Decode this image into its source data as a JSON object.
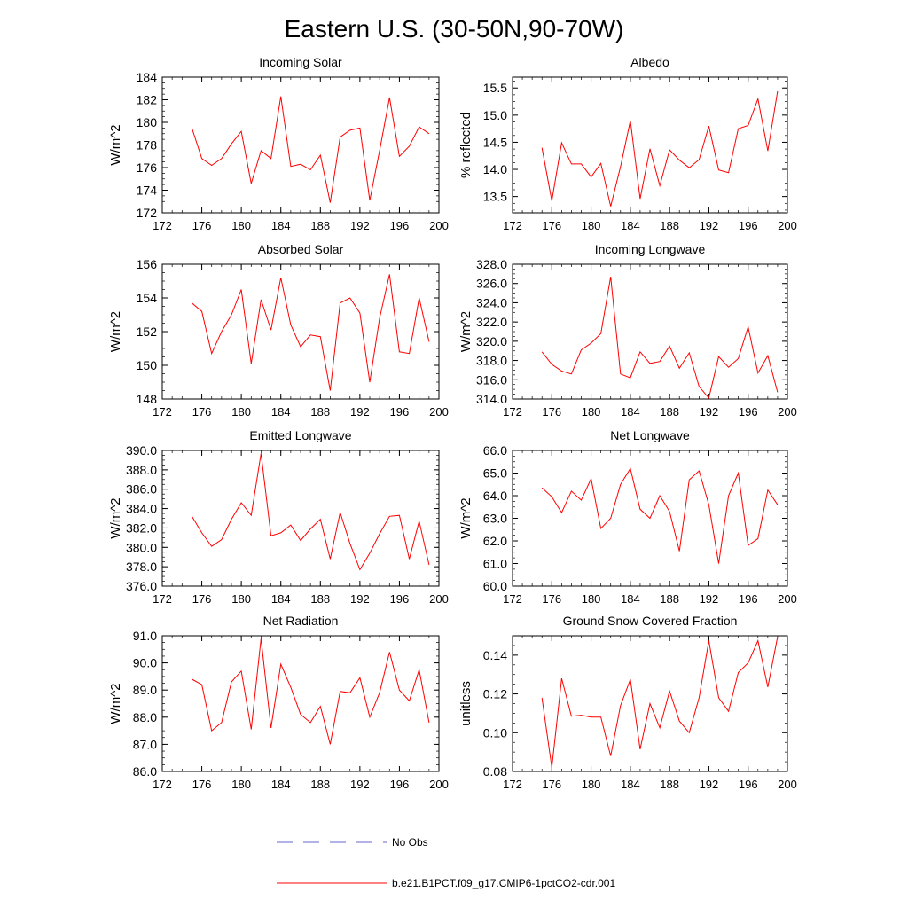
{
  "figure": {
    "title": "Eastern U.S. (30-50N,90-70W)",
    "legend": [
      {
        "label": "No Obs",
        "color": "#6666cc",
        "style": "dashed"
      },
      {
        "label": "b.e21.B1PCT.f09_g17.CMIP6-1pctCO2-cdr.001",
        "color": "#ff0000",
        "style": "solid"
      }
    ]
  },
  "chart_data": [
    {
      "type": "line",
      "title": "Incoming Solar",
      "ylabel": "W/m^2",
      "xlim": [
        172,
        200
      ],
      "xticks": [
        172,
        176,
        180,
        184,
        188,
        192,
        196,
        200
      ],
      "ylim": [
        172,
        184
      ],
      "yticks": [
        "172",
        "174",
        "176",
        "178",
        "180",
        "182",
        "184"
      ],
      "x": [
        175,
        176,
        177,
        178,
        179,
        180,
        181,
        182,
        183,
        184,
        185,
        186,
        187,
        188,
        189,
        190,
        191,
        192,
        193,
        194,
        195,
        196,
        197,
        198,
        199
      ],
      "series": [
        {
          "color": "#ff0000",
          "values": [
            179.5,
            176.8,
            176.2,
            176.8,
            178.1,
            179.2,
            174.6,
            177.5,
            176.8,
            182.3,
            176.1,
            176.3,
            175.8,
            177.1,
            172.9,
            178.7,
            179.3,
            179.5,
            173.1,
            177.5,
            182.2,
            177.0,
            177.9,
            179.6,
            179.0
          ]
        }
      ]
    },
    {
      "type": "line",
      "title": "Albedo",
      "ylabel": "% reflected",
      "xlim": [
        172,
        200
      ],
      "xticks": [
        172,
        176,
        180,
        184,
        188,
        192,
        196,
        200
      ],
      "ylim": [
        13.2,
        15.7
      ],
      "yticks": [
        "13.5",
        "14.0",
        "14.5",
        "15.0",
        "15.5"
      ],
      "x": [
        175,
        176,
        177,
        178,
        179,
        180,
        181,
        182,
        183,
        184,
        185,
        186,
        187,
        188,
        189,
        190,
        191,
        192,
        193,
        194,
        195,
        196,
        197,
        198,
        199
      ],
      "series": [
        {
          "color": "#ff0000",
          "values": [
            14.4,
            13.42,
            14.49,
            14.1,
            14.1,
            13.86,
            14.11,
            13.32,
            14.05,
            14.9,
            13.46,
            14.38,
            13.7,
            14.36,
            14.17,
            14.03,
            14.18,
            14.8,
            13.99,
            13.94,
            14.75,
            14.81,
            15.3,
            14.34,
            15.44
          ]
        }
      ]
    },
    {
      "type": "line",
      "title": "Absorbed Solar",
      "ylabel": "W/m^2",
      "xlim": [
        172,
        200
      ],
      "xticks": [
        172,
        176,
        180,
        184,
        188,
        192,
        196,
        200
      ],
      "ylim": [
        148,
        156
      ],
      "yticks": [
        "148",
        "150",
        "152",
        "154",
        "156"
      ],
      "x": [
        175,
        176,
        177,
        178,
        179,
        180,
        181,
        182,
        183,
        184,
        185,
        186,
        187,
        188,
        189,
        190,
        191,
        192,
        193,
        194,
        195,
        196,
        197,
        198,
        199
      ],
      "series": [
        {
          "color": "#ff0000",
          "values": [
            153.7,
            153.2,
            150.7,
            152.0,
            153.0,
            154.5,
            150.1,
            153.9,
            152.1,
            155.2,
            152.4,
            151.1,
            151.8,
            151.7,
            148.5,
            153.7,
            154.0,
            153.1,
            149.0,
            152.8,
            155.4,
            150.8,
            150.7,
            154.0,
            151.4
          ]
        }
      ]
    },
    {
      "type": "line",
      "title": "Incoming Longwave",
      "ylabel": "W/m^2",
      "xlim": [
        172,
        200
      ],
      "xticks": [
        172,
        176,
        180,
        184,
        188,
        192,
        196,
        200
      ],
      "ylim": [
        314,
        328
      ],
      "yticks": [
        "314.0",
        "316.0",
        "318.0",
        "320.0",
        "322.0",
        "324.0",
        "326.0",
        "328.0"
      ],
      "x": [
        175,
        176,
        177,
        178,
        179,
        180,
        181,
        182,
        183,
        184,
        185,
        186,
        187,
        188,
        189,
        190,
        191,
        192,
        193,
        194,
        195,
        196,
        197,
        198,
        199
      ],
      "series": [
        {
          "color": "#ff0000",
          "values": [
            318.9,
            317.6,
            316.9,
            316.6,
            319.1,
            319.8,
            320.8,
            326.7,
            316.6,
            316.2,
            318.9,
            317.7,
            317.9,
            319.5,
            317.2,
            318.8,
            315.3,
            314.1,
            318.4,
            317.3,
            318.2,
            321.5,
            316.7,
            318.5,
            314.7
          ]
        }
      ]
    },
    {
      "type": "line",
      "title": "Emitted Longwave",
      "ylabel": "W/m^2",
      "xlim": [
        172,
        200
      ],
      "xticks": [
        172,
        176,
        180,
        184,
        188,
        192,
        196,
        200
      ],
      "ylim": [
        376,
        390
      ],
      "yticks": [
        "376.0",
        "378.0",
        "380.0",
        "382.0",
        "384.0",
        "386.0",
        "388.0",
        "390.0"
      ],
      "x": [
        175,
        176,
        177,
        178,
        179,
        180,
        181,
        182,
        183,
        184,
        185,
        186,
        187,
        188,
        189,
        190,
        191,
        192,
        193,
        194,
        195,
        196,
        197,
        198,
        199
      ],
      "series": [
        {
          "color": "#ff0000",
          "values": [
            383.2,
            381.5,
            380.1,
            380.8,
            382.9,
            384.6,
            383.3,
            389.7,
            381.2,
            381.5,
            382.3,
            380.7,
            381.9,
            382.9,
            378.8,
            383.6,
            380.4,
            377.7,
            379.4,
            381.4,
            383.2,
            383.3,
            378.8,
            382.7,
            378.2
          ]
        }
      ]
    },
    {
      "type": "line",
      "title": "Net Longwave",
      "ylabel": "W/m^2",
      "xlim": [
        172,
        200
      ],
      "xticks": [
        172,
        176,
        180,
        184,
        188,
        192,
        196,
        200
      ],
      "ylim": [
        60,
        66
      ],
      "yticks": [
        "60.0",
        "61.0",
        "62.0",
        "63.0",
        "64.0",
        "65.0",
        "66.0"
      ],
      "x": [
        175,
        176,
        177,
        178,
        179,
        180,
        181,
        182,
        183,
        184,
        185,
        186,
        187,
        188,
        189,
        190,
        191,
        192,
        193,
        194,
        195,
        196,
        197,
        198,
        199
      ],
      "series": [
        {
          "color": "#ff0000",
          "values": [
            64.35,
            63.95,
            63.25,
            64.2,
            63.8,
            64.75,
            62.55,
            63.0,
            64.5,
            65.2,
            63.4,
            63.0,
            64.0,
            63.3,
            61.55,
            64.7,
            65.1,
            63.6,
            61.0,
            64.0,
            65.0,
            61.8,
            62.1,
            64.25,
            63.6
          ]
        }
      ]
    },
    {
      "type": "line",
      "title": "Net Radiation",
      "ylabel": "W/m^2",
      "xlim": [
        172,
        200
      ],
      "xticks": [
        172,
        176,
        180,
        184,
        188,
        192,
        196,
        200
      ],
      "ylim": [
        86,
        91
      ],
      "yticks": [
        "86.0",
        "87.0",
        "88.0",
        "89.0",
        "90.0",
        "91.0"
      ],
      "x": [
        175,
        176,
        177,
        178,
        179,
        180,
        181,
        182,
        183,
        184,
        185,
        186,
        187,
        188,
        189,
        190,
        191,
        192,
        193,
        194,
        195,
        196,
        197,
        198,
        199
      ],
      "series": [
        {
          "color": "#ff0000",
          "values": [
            89.4,
            89.2,
            87.5,
            87.8,
            89.3,
            89.7,
            87.55,
            90.9,
            87.6,
            89.95,
            89.1,
            88.1,
            87.8,
            88.4,
            87.0,
            88.95,
            88.9,
            89.45,
            88.0,
            88.9,
            90.4,
            89.0,
            88.6,
            89.75,
            87.8
          ]
        }
      ]
    },
    {
      "type": "line",
      "title": "Ground Snow Covered Fraction",
      "ylabel": "unitless",
      "xlim": [
        172,
        200
      ],
      "xticks": [
        172,
        176,
        180,
        184,
        188,
        192,
        196,
        200
      ],
      "ylim": [
        0.08,
        0.15
      ],
      "yticks": [
        "0.08",
        "0.10",
        "0.12",
        "0.14"
      ],
      "x": [
        175,
        176,
        177,
        178,
        179,
        180,
        181,
        182,
        183,
        184,
        185,
        186,
        187,
        188,
        189,
        190,
        191,
        192,
        193,
        194,
        195,
        196,
        197,
        198,
        199
      ],
      "series": [
        {
          "color": "#ff0000",
          "values": [
            0.118,
            0.082,
            0.128,
            0.1085,
            0.109,
            0.108,
            0.108,
            0.088,
            0.114,
            0.1275,
            0.0915,
            0.115,
            0.1025,
            0.1215,
            0.106,
            0.1,
            0.118,
            0.1475,
            0.118,
            0.111,
            0.131,
            0.136,
            0.1475,
            0.1235,
            0.1495
          ]
        }
      ]
    }
  ]
}
